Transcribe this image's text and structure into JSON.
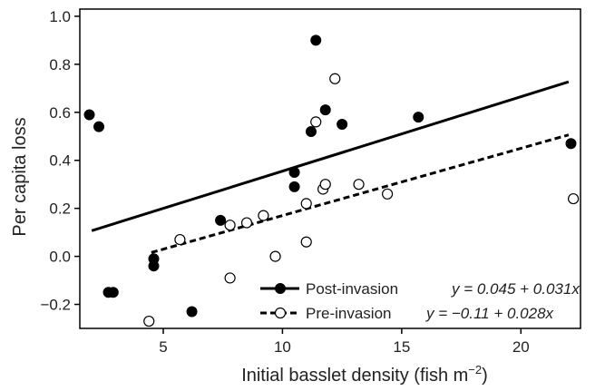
{
  "chart_data": {
    "type": "scatter",
    "xlabel": "Initial basslet density (fish m",
    "xlabel_sup": "−2",
    "xlabel_end": ")",
    "ylabel": "Per capita loss",
    "xlim": [
      1.5,
      22.5
    ],
    "ylim": [
      -0.3,
      1.03
    ],
    "x_ticks": [
      5,
      10,
      15,
      20
    ],
    "x_tick_labels": [
      "5",
      "10",
      "15",
      "20"
    ],
    "y_ticks": [
      -0.2,
      0.0,
      0.2,
      0.4,
      0.6,
      0.8,
      1.0
    ],
    "y_tick_labels": [
      "−0.2",
      "0.0",
      "0.2",
      "0.4",
      "0.6",
      "0.8",
      "1.0"
    ],
    "grid": false,
    "legend_position": "bottom-right",
    "series": [
      {
        "name": "Post-invasion",
        "equation": "y = 0.045 + 0.031x",
        "marker": "filled-circle",
        "line": "solid",
        "color": "#000000",
        "fit": {
          "intercept": 0.045,
          "slope": 0.031,
          "x_range": [
            2.0,
            22.0
          ]
        },
        "points": [
          {
            "x": 1.9,
            "y": 0.59
          },
          {
            "x": 2.3,
            "y": 0.54
          },
          {
            "x": 2.7,
            "y": -0.15
          },
          {
            "x": 2.9,
            "y": -0.15
          },
          {
            "x": 4.6,
            "y": -0.01
          },
          {
            "x": 4.6,
            "y": -0.04
          },
          {
            "x": 6.2,
            "y": -0.23
          },
          {
            "x": 7.4,
            "y": 0.15
          },
          {
            "x": 10.5,
            "y": 0.35
          },
          {
            "x": 10.5,
            "y": 0.29
          },
          {
            "x": 11.2,
            "y": 0.52
          },
          {
            "x": 11.4,
            "y": 0.9
          },
          {
            "x": 11.8,
            "y": 0.61
          },
          {
            "x": 12.5,
            "y": 0.55
          },
          {
            "x": 15.7,
            "y": 0.58
          },
          {
            "x": 22.1,
            "y": 0.47
          }
        ]
      },
      {
        "name": "Pre-invasion",
        "equation": "y = −0.11 + 0.028x",
        "marker": "open-circle",
        "line": "dashed",
        "color": "#000000",
        "fit": {
          "intercept": -0.11,
          "slope": 0.028,
          "x_range": [
            4.5,
            22.0
          ]
        },
        "points": [
          {
            "x": 4.4,
            "y": -0.27
          },
          {
            "x": 5.7,
            "y": 0.07
          },
          {
            "x": 7.8,
            "y": 0.13
          },
          {
            "x": 7.8,
            "y": -0.09
          },
          {
            "x": 8.5,
            "y": 0.14
          },
          {
            "x": 9.2,
            "y": 0.17
          },
          {
            "x": 9.7,
            "y": 0.0
          },
          {
            "x": 11.0,
            "y": 0.22
          },
          {
            "x": 11.0,
            "y": 0.06
          },
          {
            "x": 11.4,
            "y": 0.56
          },
          {
            "x": 11.7,
            "y": 0.28
          },
          {
            "x": 11.8,
            "y": 0.3
          },
          {
            "x": 12.2,
            "y": 0.74
          },
          {
            "x": 13.2,
            "y": 0.3
          },
          {
            "x": 14.4,
            "y": 0.26
          },
          {
            "x": 22.2,
            "y": 0.24
          }
        ]
      }
    ]
  }
}
